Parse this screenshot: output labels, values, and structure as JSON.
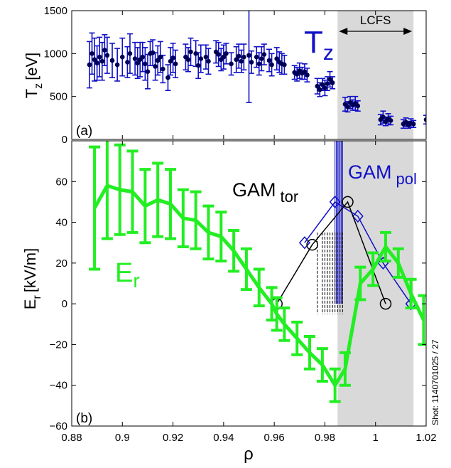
{
  "chart_data": [
    {
      "type": "scatter",
      "panel_label": "(a)",
      "ylabel": "T_z [eV]",
      "ylabel_main": "T",
      "ylabel_sub": "z",
      "ylabel_unit": "[eV]",
      "series_label": "Tz",
      "series_label_main": "T",
      "series_label_sub": "z",
      "lcfs_label": "LCFS",
      "shaded_region": [
        0.985,
        1.015
      ],
      "xlim": [
        0.88,
        1.02
      ],
      "ylim": [
        0,
        1500
      ],
      "yticks": [
        "0",
        "500",
        "1000",
        "1500"
      ],
      "colors": {
        "points": "#000055",
        "errorbars": "#1010c8",
        "shade": "#d9d9d9"
      },
      "points": [
        [
          0.887,
          870,
          270
        ],
        [
          0.888,
          1000,
          240
        ],
        [
          0.889,
          930,
          250
        ],
        [
          0.89,
          890,
          200
        ],
        [
          0.891,
          960,
          230
        ],
        [
          0.892,
          910,
          220
        ],
        [
          0.893,
          1040,
          180
        ],
        [
          0.894,
          980,
          210
        ],
        [
          0.896,
          920,
          200
        ],
        [
          0.898,
          870,
          190
        ],
        [
          0.9,
          960,
          220
        ],
        [
          0.902,
          900,
          180
        ],
        [
          0.903,
          1000,
          230
        ],
        [
          0.905,
          940,
          190
        ],
        [
          0.906,
          890,
          180
        ],
        [
          0.907,
          930,
          200
        ],
        [
          0.908,
          960,
          170
        ],
        [
          0.909,
          880,
          190
        ],
        [
          0.91,
          790,
          200
        ],
        [
          0.911,
          1000,
          140
        ],
        [
          0.912,
          1010,
          150
        ],
        [
          0.913,
          850,
          160
        ],
        [
          0.914,
          920,
          170
        ],
        [
          0.915,
          960,
          180
        ],
        [
          0.916,
          820,
          160
        ],
        [
          0.918,
          720,
          150
        ],
        [
          0.919,
          910,
          160
        ],
        [
          0.92,
          950,
          170
        ],
        [
          0.921,
          880,
          160
        ],
        [
          0.925,
          960,
          150
        ],
        [
          0.926,
          930,
          140
        ],
        [
          0.927,
          1020,
          160
        ],
        [
          0.929,
          1000,
          150
        ],
        [
          0.93,
          860,
          150
        ],
        [
          0.931,
          940,
          160
        ],
        [
          0.933,
          960,
          140
        ],
        [
          0.934,
          910,
          150
        ],
        [
          0.937,
          1020,
          130
        ],
        [
          0.938,
          990,
          140
        ],
        [
          0.939,
          930,
          130
        ],
        [
          0.94,
          960,
          140
        ],
        [
          0.941,
          1000,
          120
        ],
        [
          0.943,
          880,
          130
        ],
        [
          0.945,
          930,
          150
        ],
        [
          0.946,
          970,
          140
        ],
        [
          0.947,
          910,
          130
        ],
        [
          0.948,
          960,
          150
        ],
        [
          0.95,
          980,
          550
        ],
        [
          0.951,
          900,
          130
        ],
        [
          0.953,
          960,
          120
        ],
        [
          0.954,
          880,
          130
        ],
        [
          0.955,
          940,
          140
        ],
        [
          0.956,
          990,
          120
        ],
        [
          0.958,
          920,
          130
        ],
        [
          0.959,
          870,
          130
        ],
        [
          0.961,
          940,
          130
        ],
        [
          0.962,
          900,
          120
        ],
        [
          0.963,
          880,
          120
        ],
        [
          0.964,
          870,
          110
        ],
        [
          0.968,
          780,
          80
        ],
        [
          0.969,
          760,
          80
        ],
        [
          0.97,
          800,
          90
        ],
        [
          0.971,
          770,
          70
        ],
        [
          0.972,
          790,
          90
        ],
        [
          0.973,
          750,
          80
        ],
        [
          0.977,
          620,
          90
        ],
        [
          0.978,
          580,
          80
        ],
        [
          0.979,
          640,
          70
        ],
        [
          0.98,
          600,
          90
        ],
        [
          0.981,
          650,
          80
        ],
        [
          0.982,
          700,
          90
        ],
        [
          0.983,
          660,
          70
        ],
        [
          0.988,
          410,
          80
        ],
        [
          0.989,
          380,
          60
        ],
        [
          0.99,
          430,
          70
        ],
        [
          0.991,
          400,
          60
        ],
        [
          0.992,
          420,
          80
        ],
        [
          0.993,
          390,
          60
        ],
        [
          1.002,
          230,
          60
        ],
        [
          1.003,
          260,
          70
        ],
        [
          1.004,
          210,
          50
        ],
        [
          1.005,
          240,
          60
        ],
        [
          1.006,
          220,
          50
        ],
        [
          1.011,
          180,
          50
        ],
        [
          1.012,
          200,
          50
        ],
        [
          1.013,
          170,
          40
        ],
        [
          1.014,
          190,
          50
        ],
        [
          1.015,
          180,
          40
        ],
        [
          1.02,
          230,
          50
        ]
      ]
    },
    {
      "type": "line",
      "panel_label": "(b)",
      "xlabel": "ρ",
      "ylabel": "E_r [kV/m]",
      "ylabel_main": "E",
      "ylabel_sub": "r",
      "ylabel_unit": "[kV/m]",
      "xlim": [
        0.88,
        1.02
      ],
      "ylim": [
        -60,
        80
      ],
      "xticks": [
        "0.88",
        "0.9",
        "0.92",
        "0.94",
        "0.96",
        "0.98",
        "1",
        "1.02"
      ],
      "yticks": [
        "−60",
        "−40",
        "−20",
        "0",
        "20",
        "40",
        "60"
      ],
      "shaded_region": [
        0.985,
        1.015
      ],
      "shot_label": "Shot: 1140701025 / 27",
      "colors": {
        "er": "#22ee22",
        "gam_tor": "#000000",
        "gam_pol": "#1010c8",
        "shade": "#d9d9d9"
      },
      "series": [
        {
          "name": "Er",
          "label_main": "E",
          "label_sub": "r",
          "x": [
            0.889,
            0.894,
            0.899,
            0.904,
            0.909,
            0.914,
            0.919,
            0.924,
            0.929,
            0.934,
            0.939,
            0.944,
            0.949,
            0.954,
            0.959,
            0.961,
            0.964,
            0.969,
            0.974,
            0.979,
            0.984,
            0.988,
            0.994,
            0.999,
            1.004,
            1.009,
            1.014,
            1.019
          ],
          "y": [
            47,
            58,
            56,
            55,
            48,
            51,
            49,
            42,
            41,
            35,
            33,
            26,
            17,
            8,
            0,
            -5,
            -10,
            -17,
            -24,
            -30,
            -40,
            -32,
            10,
            17,
            28,
            20,
            5,
            -8
          ],
          "err": [
            30,
            26,
            22,
            20,
            18,
            18,
            17,
            14,
            14,
            13,
            12,
            10,
            10,
            9,
            8,
            8,
            8,
            8,
            8,
            8,
            8,
            8,
            8,
            8,
            7,
            7,
            7,
            12
          ]
        },
        {
          "name": "GAM tor",
          "label_main": "GAM",
          "label_sub": "tor",
          "x": [
            0.961,
            0.975,
            0.989,
            1.004
          ],
          "y": [
            0,
            29,
            50,
            0
          ]
        },
        {
          "name": "GAM pol",
          "label_main": "GAM",
          "label_sub": "pol",
          "x": [
            0.972,
            0.984,
            0.993,
            1.003,
            1.014
          ],
          "y": [
            30,
            50,
            43,
            20,
            0
          ]
        }
      ],
      "gam_vertical_lines": [
        0.984,
        0.9845,
        0.985,
        0.9855,
        0.986,
        0.9865,
        0.987
      ],
      "gam_dashed_lines": [
        0.977,
        0.979,
        0.98,
        0.981,
        0.982,
        0.983,
        0.984,
        0.985,
        0.986,
        0.987
      ]
    }
  ]
}
